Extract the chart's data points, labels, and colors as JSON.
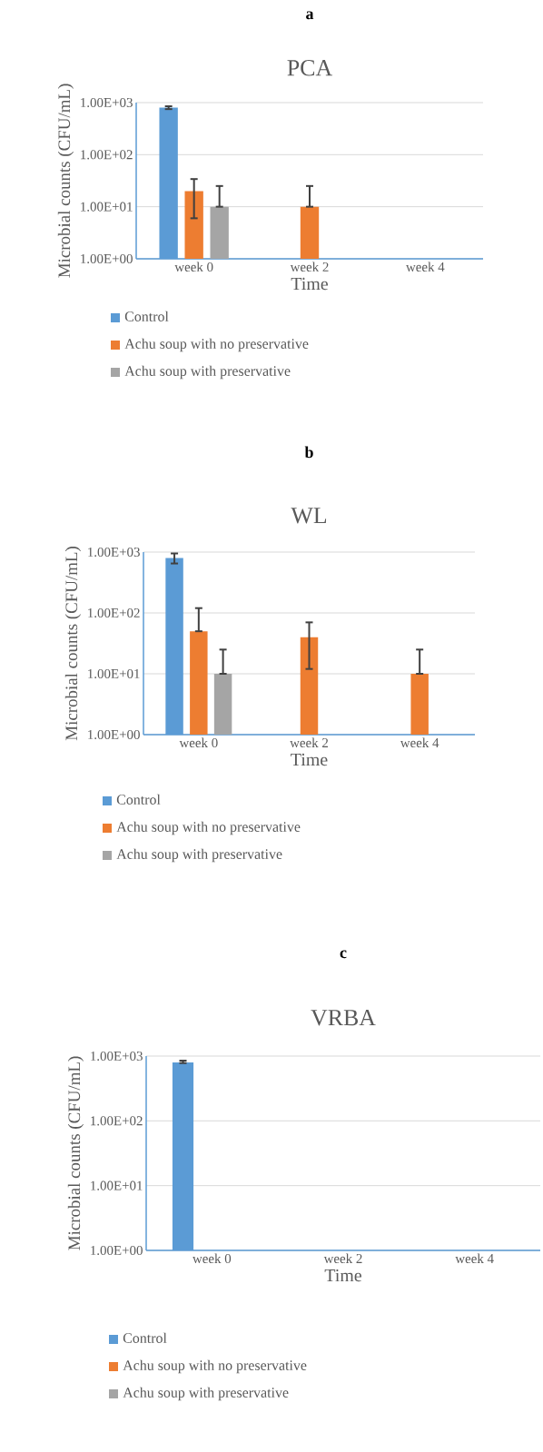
{
  "chart_data": [
    {
      "type": "bar",
      "annotations": [
        "a"
      ],
      "title": "PCA",
      "xlabel": "Time",
      "ylabel": "Microbial counts (CFU/mL)",
      "categories": [
        "week 0",
        "week 2",
        "week 4"
      ],
      "series": [
        {
          "name": "Control",
          "color": "#5b9bd5",
          "values": [
            800,
            null,
            null
          ],
          "errors": [
            [
              750,
              850
            ],
            null,
            null
          ]
        },
        {
          "name": "Achu soup with no preservative",
          "color": "#ed7d31",
          "values": [
            20,
            10,
            null
          ],
          "errors": [
            [
              6,
              34
            ],
            [
              10,
              25
            ],
            null
          ]
        },
        {
          "name": "Achu soup with preservative",
          "color": "#a5a5a5",
          "values": [
            10,
            null,
            null
          ],
          "errors": [
            [
              10,
              25
            ],
            null,
            null
          ]
        }
      ],
      "log": true,
      "ylim": [
        1,
        1000
      ],
      "yticks": [
        {
          "value": 1,
          "label": "1.00E+00"
        },
        {
          "value": 10,
          "label": "1.00E+01"
        },
        {
          "value": 100,
          "label": "1.00E+02"
        },
        {
          "value": 1000,
          "label": "1.00E+03"
        }
      ],
      "grid": "y",
      "legend": "bottom"
    },
    {
      "type": "bar",
      "annotations": [
        "b"
      ],
      "title": "WL",
      "xlabel": "Time",
      "ylabel": "Microbial counts (CFU/mL)",
      "categories": [
        "week 0",
        "week 2",
        "week 4"
      ],
      "series": [
        {
          "name": "Control",
          "color": "#5b9bd5",
          "values": [
            800,
            null,
            null
          ],
          "errors": [
            [
              650,
              950
            ],
            null,
            null
          ]
        },
        {
          "name": "Achu soup with no preservative",
          "color": "#ed7d31",
          "values": [
            50,
            40,
            10
          ],
          "errors": [
            [
              50,
              120
            ],
            [
              12,
              70
            ],
            [
              10,
              25
            ]
          ]
        },
        {
          "name": "Achu soup with preservative",
          "color": "#a5a5a5",
          "values": [
            10,
            null,
            null
          ],
          "errors": [
            [
              10,
              25
            ],
            null,
            null
          ]
        }
      ],
      "log": true,
      "ylim": [
        1,
        1000
      ],
      "yticks": [
        {
          "value": 1,
          "label": "1.00E+00"
        },
        {
          "value": 10,
          "label": "1.00E+01"
        },
        {
          "value": 100,
          "label": "1.00E+02"
        },
        {
          "value": 1000,
          "label": "1.00E+03"
        }
      ],
      "grid": "y",
      "legend": "bottom"
    },
    {
      "type": "bar",
      "annotations": [
        "c"
      ],
      "title": "VRBA",
      "xlabel": "Time",
      "ylabel": "Microbial counts (CFU/mL)",
      "categories": [
        "week 0",
        "week 2",
        "week 4"
      ],
      "series": [
        {
          "name": "Control",
          "color": "#5b9bd5",
          "values": [
            800,
            null,
            null
          ],
          "errors": [
            [
              780,
              850
            ],
            null,
            null
          ]
        },
        {
          "name": "Achu soup with no preservative",
          "color": "#ed7d31",
          "values": [
            null,
            null,
            null
          ]
        },
        {
          "name": "Achu soup with preservative",
          "color": "#a5a5a5",
          "values": [
            null,
            null,
            null
          ]
        }
      ],
      "log": true,
      "ylim": [
        1,
        1000
      ],
      "yticks": [
        {
          "value": 1,
          "label": "1.00E+00"
        },
        {
          "value": 10,
          "label": "1.00E+01"
        },
        {
          "value": 100,
          "label": "1.00E+02"
        },
        {
          "value": 1000,
          "label": "1.00E+03"
        }
      ],
      "grid": "y",
      "legend": "bottom"
    }
  ]
}
